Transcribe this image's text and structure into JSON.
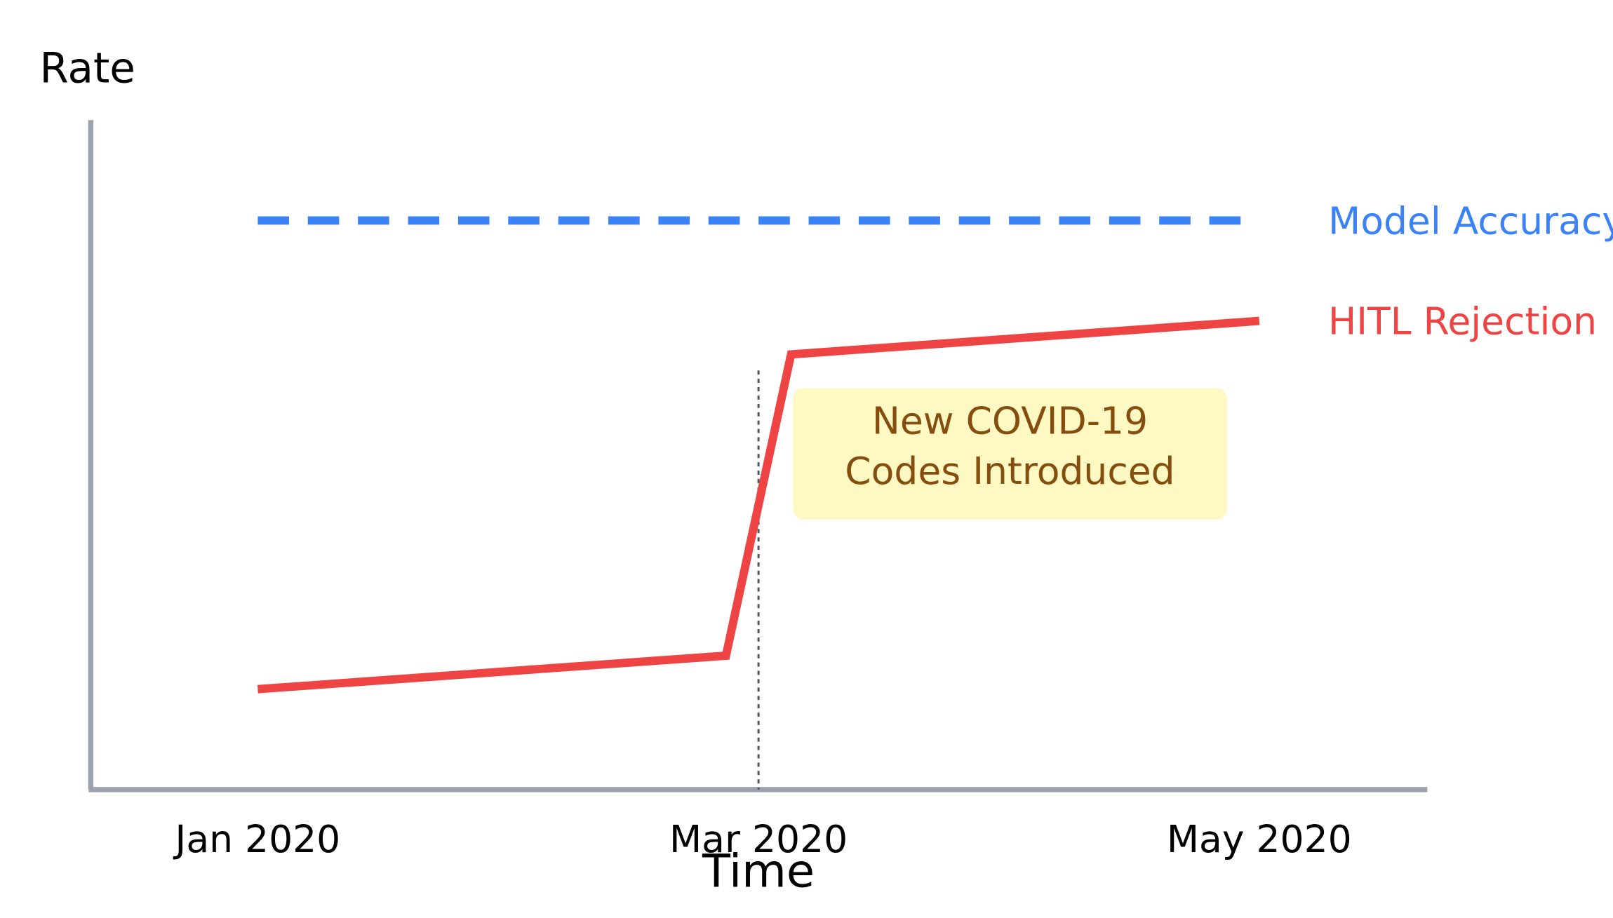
{
  "chart_data": {
    "type": "line",
    "y_label": "Rate",
    "x_label": "Time",
    "xlim": [
      -0.667,
      4.667
    ],
    "ylim": [
      0,
      100
    ],
    "xticks": [
      {
        "value": 0,
        "label": "Jan 2020"
      },
      {
        "value": 2,
        "label": "Mar 2020"
      },
      {
        "value": 4,
        "label": "May 2020"
      }
    ],
    "series": [
      {
        "name": "Model Accuracy",
        "color": "#3b82f6",
        "dashed": true,
        "x": [
          0,
          3.94
        ],
        "values": [
          85,
          85
        ]
      },
      {
        "name": "HITL Rejection",
        "color": "#ef4444",
        "dashed": false,
        "x": [
          0,
          1.87,
          2.13,
          4
        ],
        "values": [
          15,
          20,
          65,
          70
        ]
      }
    ],
    "annotation": {
      "x": 2,
      "y": 62.6,
      "text": [
        "New COVID-19",
        "Codes Introduced"
      ]
    }
  }
}
